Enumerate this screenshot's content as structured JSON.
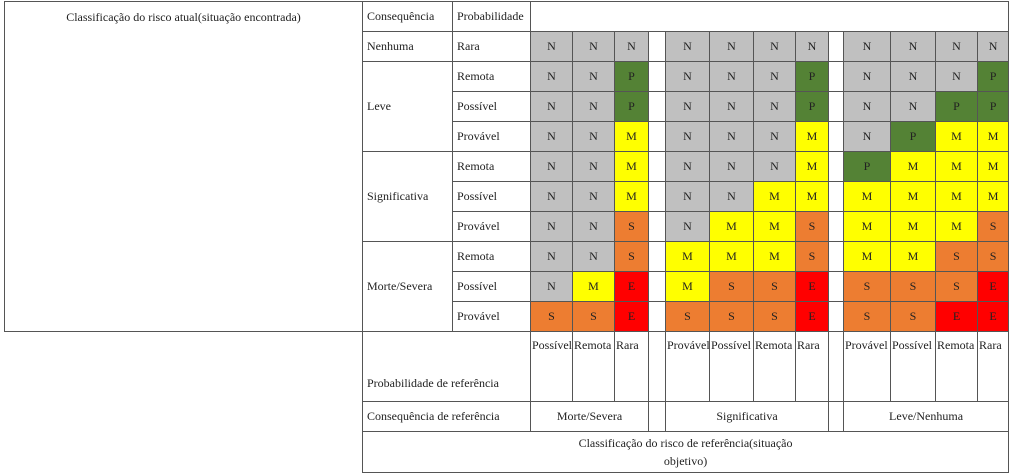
{
  "colors": {
    "N": "#c0c0c0",
    "P": "#548235",
    "M": "#ffff00",
    "S": "#ed7d31",
    "E": "#ff0000"
  },
  "header": {
    "current_risk_title": "Classificação do risco atual(situação encontrada)",
    "consequence": "Consequência",
    "probability": "Probabilidade"
  },
  "rows": [
    {
      "consequence": "Nenhuma",
      "probability": "Rara",
      "g1": [
        "N",
        "N",
        "N"
      ],
      "g2": [
        "N",
        "N",
        "N",
        "N"
      ],
      "g3": [
        "N",
        "N",
        "N",
        "N"
      ]
    },
    {
      "consequence": "Leve",
      "probability": "Remota",
      "g1": [
        "N",
        "N",
        "P"
      ],
      "g2": [
        "N",
        "N",
        "N",
        "P"
      ],
      "g3": [
        "N",
        "N",
        "N",
        "P"
      ]
    },
    {
      "consequence": "",
      "probability": "Possível",
      "g1": [
        "N",
        "N",
        "P"
      ],
      "g2": [
        "N",
        "N",
        "N",
        "P"
      ],
      "g3": [
        "N",
        "N",
        "P",
        "P"
      ]
    },
    {
      "consequence": "",
      "probability": "Provável",
      "g1": [
        "N",
        "N",
        "M"
      ],
      "g2": [
        "N",
        "N",
        "N",
        "M"
      ],
      "g3": [
        "N",
        "P",
        "M",
        "M"
      ]
    },
    {
      "consequence": "Significativa",
      "probability": "Remota",
      "g1": [
        "N",
        "N",
        "M"
      ],
      "g2": [
        "N",
        "N",
        "N",
        "M"
      ],
      "g3": [
        "P",
        "M",
        "M",
        "M"
      ]
    },
    {
      "consequence": "",
      "probability": "Possível",
      "g1": [
        "N",
        "N",
        "M"
      ],
      "g2": [
        "N",
        "N",
        "M",
        "M"
      ],
      "g3": [
        "M",
        "M",
        "M",
        "M"
      ]
    },
    {
      "consequence": "",
      "probability": "Provável",
      "g1": [
        "N",
        "N",
        "S"
      ],
      "g2": [
        "N",
        "M",
        "M",
        "S"
      ],
      "g3": [
        "M",
        "M",
        "M",
        "S"
      ]
    },
    {
      "consequence": "Morte/Severa",
      "probability": "Remota",
      "g1": [
        "N",
        "N",
        "S"
      ],
      "g2": [
        "M",
        "M",
        "M",
        "S"
      ],
      "g3": [
        "M",
        "M",
        "S",
        "S"
      ]
    },
    {
      "consequence": "",
      "probability": "Possível",
      "g1": [
        "N",
        "M",
        "E"
      ],
      "g2": [
        "M",
        "S",
        "S",
        "E"
      ],
      "g3": [
        "S",
        "S",
        "S",
        "E"
      ]
    },
    {
      "consequence": "",
      "probability": "Provável",
      "g1": [
        "S",
        "S",
        "E"
      ],
      "g2": [
        "S",
        "S",
        "S",
        "E"
      ],
      "g3": [
        "S",
        "S",
        "E",
        "E"
      ]
    }
  ],
  "footer": {
    "probability_ref_label": "Probabilidade de referência",
    "g1_probs": [
      "Possível",
      "Remota",
      "Rara"
    ],
    "g2_probs": [
      "Provável",
      "Possível",
      "Remota",
      "Rara"
    ],
    "g3_probs": [
      "Provável",
      "Possível",
      "Remota",
      "Rara"
    ],
    "consequence_ref_label": "Consequência de referência",
    "consequence_refs": [
      "Morte/Severa",
      "Significativa",
      "Leve/Nenhuma"
    ],
    "reference_title": "Classificação do risco de referência(situação objetivo)"
  }
}
